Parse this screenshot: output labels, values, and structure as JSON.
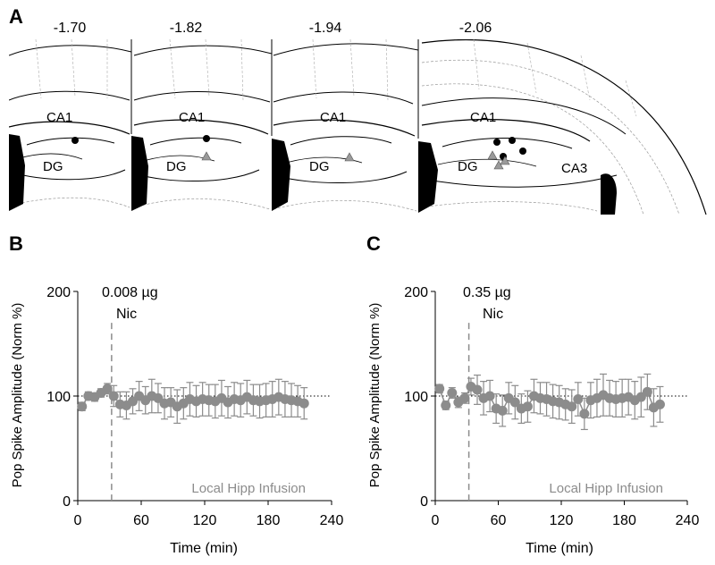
{
  "panel_a": {
    "label": "A",
    "sections": [
      {
        "coord": "-1.70",
        "regions": [
          "CA1",
          "DG"
        ],
        "markers": {
          "circles": 1,
          "triangles": 0
        }
      },
      {
        "coord": "-1.82",
        "regions": [
          "CA1",
          "DG"
        ],
        "markers": {
          "circles": 1,
          "triangles": 1
        }
      },
      {
        "coord": "-1.94",
        "regions": [
          "CA1",
          "DG"
        ],
        "markers": {
          "circles": 0,
          "triangles": 1
        }
      },
      {
        "coord": "-2.06",
        "regions": [
          "CA1",
          "DG",
          "CA3"
        ],
        "markers": {
          "circles": 4,
          "triangles": 3
        }
      }
    ]
  },
  "chart_data": [
    {
      "panel": "B",
      "type": "scatter",
      "xlabel": "Time (min)",
      "ylabel": "Pop Spike Amplitude (Norm %)",
      "xlim": [
        0,
        240
      ],
      "ylim": [
        0,
        200
      ],
      "xticks": [
        0,
        60,
        120,
        180,
        240
      ],
      "yticks": [
        0,
        100,
        200
      ],
      "baseline": 100,
      "injection": {
        "time": 32,
        "dose": "0.008 µg",
        "drug": "Nic"
      },
      "annotation": "Local Hipp Infusion",
      "series": [
        {
          "color": "#8c8c8c",
          "x": [
            4,
            10,
            16,
            22,
            28,
            34,
            40,
            46,
            52,
            58,
            64,
            70,
            76,
            82,
            88,
            94,
            100,
            106,
            112,
            118,
            124,
            130,
            136,
            142,
            148,
            154,
            160,
            166,
            172,
            178,
            184,
            190,
            196,
            202,
            208,
            214
          ],
          "y": [
            90,
            100,
            99,
            103,
            107,
            100,
            92,
            91,
            95,
            100,
            96,
            100,
            98,
            93,
            94,
            90,
            93,
            97,
            95,
            97,
            96,
            95,
            98,
            94,
            97,
            96,
            99,
            96,
            95,
            96,
            97,
            99,
            97,
            96,
            95,
            93
          ],
          "error": [
            4,
            4,
            4,
            4,
            5,
            10,
            12,
            13,
            12,
            14,
            13,
            16,
            14,
            15,
            14,
            16,
            15,
            16,
            15,
            16,
            15,
            16,
            17,
            15,
            16,
            16,
            16,
            15,
            16,
            16,
            17,
            17,
            17,
            16,
            15,
            15
          ]
        }
      ]
    },
    {
      "panel": "C",
      "type": "scatter",
      "xlabel": "Time (min)",
      "ylabel": "Pop Spike Amplitude (Norm %)",
      "xlim": [
        0,
        240
      ],
      "ylim": [
        0,
        200
      ],
      "xticks": [
        0,
        60,
        120,
        180,
        240
      ],
      "yticks": [
        0,
        100,
        200
      ],
      "baseline": 100,
      "injection": {
        "time": 32,
        "dose": "0.35 µg",
        "drug": "Nic"
      },
      "annotation": "Local Hipp Infusion",
      "series": [
        {
          "color": "#8c8c8c",
          "x": [
            4,
            10,
            16,
            22,
            28,
            34,
            40,
            46,
            52,
            58,
            64,
            70,
            76,
            82,
            88,
            94,
            100,
            106,
            112,
            118,
            124,
            130,
            136,
            142,
            148,
            154,
            160,
            166,
            172,
            178,
            184,
            190,
            196,
            202,
            208,
            214
          ],
          "y": [
            107,
            91,
            103,
            94,
            98,
            109,
            106,
            98,
            100,
            88,
            86,
            98,
            94,
            88,
            90,
            100,
            98,
            97,
            95,
            94,
            92,
            90,
            97,
            83,
            96,
            98,
            101,
            98,
            97,
            98,
            99,
            96,
            99,
            104,
            89,
            92
          ],
          "error": [
            4,
            4,
            5,
            5,
            5,
            8,
            14,
            16,
            15,
            14,
            15,
            15,
            16,
            14,
            15,
            16,
            15,
            16,
            16,
            16,
            15,
            16,
            16,
            15,
            17,
            18,
            20,
            17,
            17,
            18,
            17,
            18,
            19,
            17,
            18,
            17
          ]
        }
      ]
    }
  ]
}
